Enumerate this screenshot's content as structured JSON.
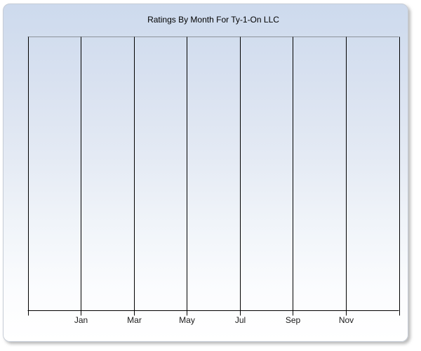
{
  "chart_data": {
    "type": "line",
    "title": "Ratings By Month For Ty-1-On LLC",
    "x_tick_labels": [
      "",
      "Jan",
      "Mar",
      "May",
      "Jul",
      "Sep",
      "Nov",
      ""
    ],
    "xlabel": "",
    "ylabel": "",
    "y_tick_labels": [],
    "series": [],
    "plot_empty": true,
    "grid": "vertical-only",
    "legend": "none",
    "x_gridline_count": 8
  },
  "colors": {
    "gridline": "#000000",
    "axis": "#000000",
    "tick": "#000000",
    "plot_top_border": "#8d939b",
    "card_border": "#c6ccd6",
    "title_color": "#000000",
    "label_color": "#1a1a1a",
    "gradient_top": "#cddaed",
    "gradient_bottom": "#ffffff",
    "page_background": "#ffffff"
  }
}
